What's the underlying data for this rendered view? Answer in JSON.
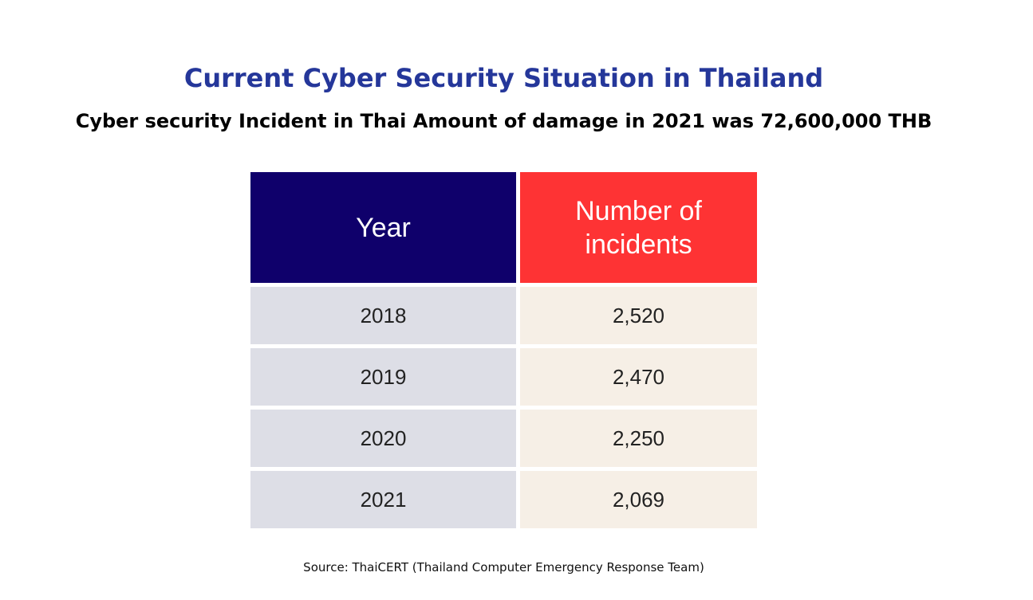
{
  "title": "Current Cyber Security Situation in Thailand",
  "subtitle": "Cyber security Incident in Thai Amount of damage in 2021 was 72,600,000 THB",
  "table": {
    "headers": [
      "Year",
      "Number of incidents"
    ],
    "rows": [
      {
        "year": "2018",
        "incidents": "2,520"
      },
      {
        "year": "2019",
        "incidents": "2,470"
      },
      {
        "year": "2020",
        "incidents": "2,250"
      },
      {
        "year": "2021",
        "incidents": "2,069"
      }
    ]
  },
  "source": "Source: ThaiCERT (Thailand Computer Emergency Response Team)",
  "colors": {
    "title": "#25379a",
    "year_header_bg": "#0f006b",
    "incidents_header_bg": "#fe3334",
    "year_cell_bg": "#dddee6",
    "incidents_cell_bg": "#f6efe6"
  }
}
